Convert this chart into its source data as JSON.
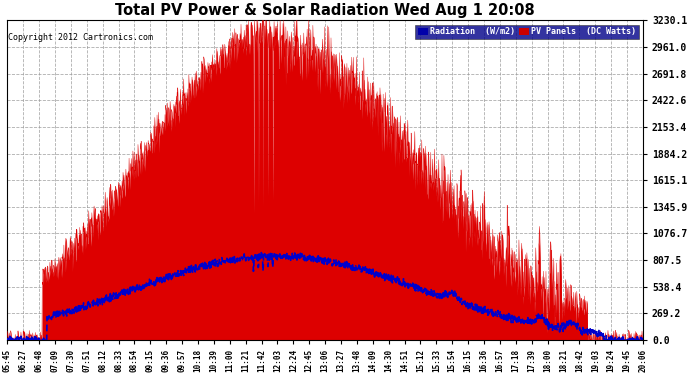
{
  "title": "Total PV Power & Solar Radiation Wed Aug 1 20:08",
  "copyright": "Copyright 2012 Cartronics.com",
  "yticks": [
    0.0,
    269.2,
    538.4,
    807.5,
    1076.7,
    1345.9,
    1615.1,
    1884.2,
    2153.4,
    2422.6,
    2691.8,
    2961.0,
    3230.1
  ],
  "ymax": 3230.1,
  "background_color": "#ffffff",
  "plot_bg_color": "#ffffff",
  "grid_color": "#aaaaaa",
  "pv_fill_color": "#dd0000",
  "pv_line_color": "#dd0000",
  "radiation_line_color": "#0000cc",
  "legend_radiation_bg": "#0000aa",
  "legend_pv_bg": "#cc0000",
  "x_labels": [
    "05:45",
    "06:27",
    "06:48",
    "07:09",
    "07:30",
    "07:51",
    "08:12",
    "08:33",
    "08:54",
    "09:15",
    "09:36",
    "09:57",
    "10:18",
    "10:39",
    "11:00",
    "11:21",
    "11:42",
    "12:03",
    "12:24",
    "12:45",
    "13:06",
    "13:27",
    "13:48",
    "14:09",
    "14:30",
    "14:51",
    "15:12",
    "15:33",
    "15:54",
    "16:15",
    "16:36",
    "16:57",
    "17:18",
    "17:39",
    "18:00",
    "18:21",
    "18:42",
    "19:03",
    "19:24",
    "19:45",
    "20:06"
  ]
}
